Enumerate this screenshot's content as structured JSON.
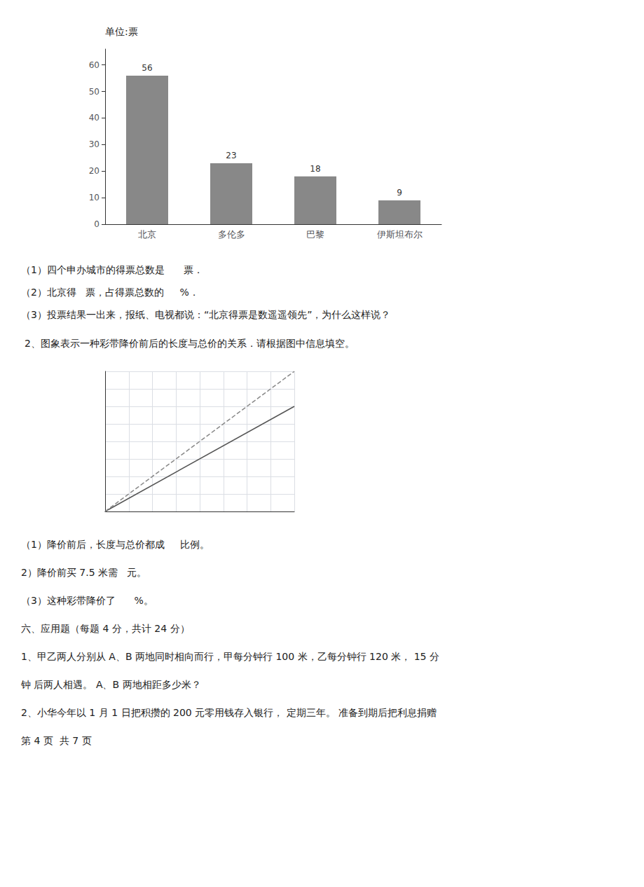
{
  "chart_data": [
    {
      "type": "bar",
      "categories": [
        "北京",
        "多伦多",
        "巴黎",
        "伊斯坦布尔"
      ],
      "values": [
        56,
        23,
        18,
        9
      ],
      "color": "#888888",
      "ylabel": "单位:票",
      "ylim": [
        0,
        66
      ],
      "yticks": [
        0,
        10,
        20,
        30,
        40,
        50,
        60
      ],
      "grid": false,
      "data_labels": true,
      "annotations": [
        "（1）四个申办城市的得票总数是      票．",
        "（2）北京得   票，占得票总数的     %．",
        "（3）投票结果一出来，报纸、电视都说：“北京得票是数遥遥领先”，为什么这样说？"
      ]
    },
    {
      "type": "line",
      "title": "2、图象表示一种彩带降价前后的长度与总价的关系．请根据图中信息填空。",
      "x": [
        0,
        8
      ],
      "series": [
        {
          "color": "#555555",
          "line_style": "solid",
          "values": [
            0,
            6
          ]
        },
        {
          "color": "#888888",
          "line_style": "dashed",
          "values": [
            0,
            8
          ]
        }
      ],
      "xlim": [
        0,
        8
      ],
      "ylim": [
        0,
        8
      ],
      "xticks": [
        0,
        1,
        2,
        3,
        4,
        5,
        6,
        7,
        8
      ],
      "yticks": [
        0,
        1,
        2,
        3,
        4,
        5,
        6,
        7,
        8
      ],
      "grid": true,
      "tick_labels": false,
      "annotations": [
        "（1）降价前后，长度与总价都成     比例。",
        "2）降价前买 7.5 米需   元。",
        "（3）这种彩带降价了      %。",
        "六、应用题（每题 4 分，共计 24 分）",
        "1、甲乙两人分别从 A、B 两地同时相向而行，甲每分钟行 100 米，乙每分钟行 120 米， 15 分",
        "钟 后两人相遇。 A、B 两地相距多少米？",
        "2、小华今年以 1 月 1 日把积攒的 200 元零用钱存入银行， 定期三年。 准备到期后把利息捐赠",
        "第 4 页  共 7 页"
      ]
    }
  ]
}
